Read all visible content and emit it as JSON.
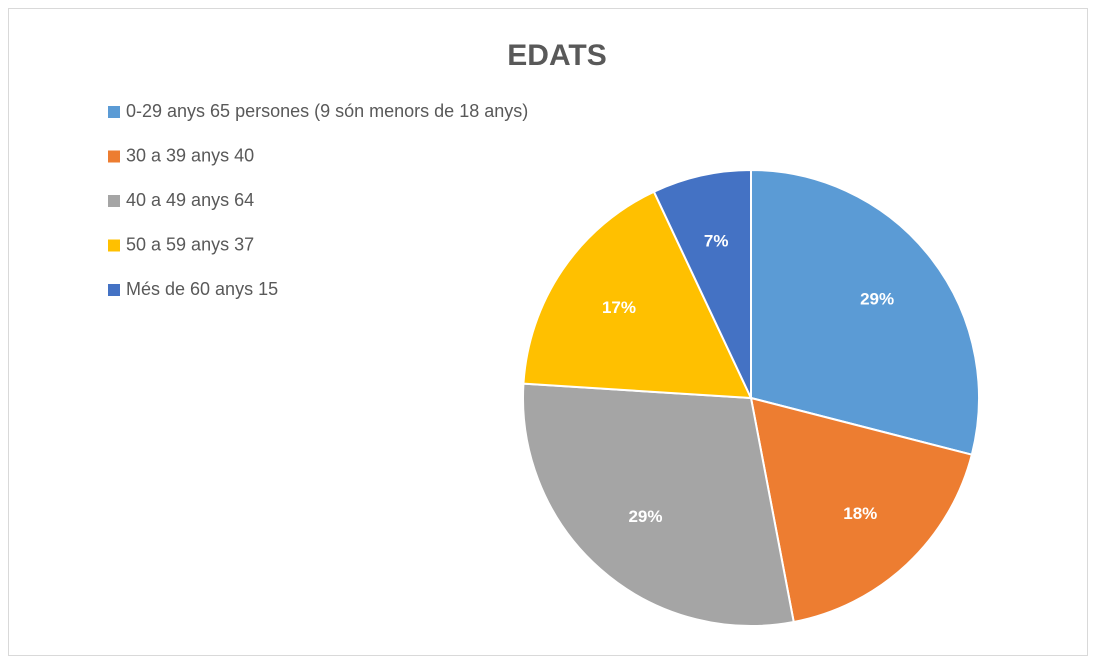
{
  "chart_data": {
    "type": "pie",
    "title": "EDATS",
    "categories": [
      "0-29 anys 65 persones (9 són menors de 18 anys)",
      "30 a 39 anys 40",
      "40 a 49 anys 64",
      "50 a 59 anys 37",
      "Més de 60 anys 15"
    ],
    "values": [
      29,
      18,
      29,
      17,
      7
    ],
    "value_labels": [
      "29%",
      "18%",
      "29%",
      "17%",
      "7%"
    ],
    "colors": [
      "#5b9bd5",
      "#ed7d31",
      "#a5a5a5",
      "#ffc000",
      "#4472c4"
    ],
    "legend": "top-left"
  }
}
